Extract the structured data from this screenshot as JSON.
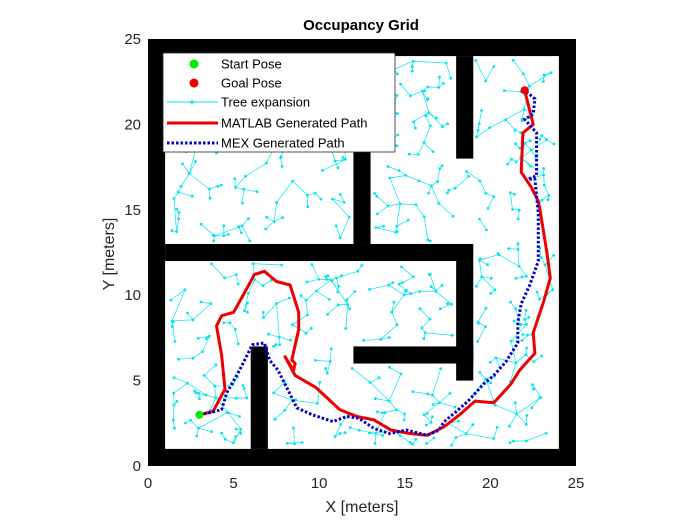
{
  "chart_data": {
    "type": "line",
    "title": "Occupancy Grid",
    "xlabel": "X [meters]",
    "ylabel": "Y [meters]",
    "xlim": [
      0,
      25
    ],
    "ylim": [
      0,
      25
    ],
    "xticks": [
      0,
      5,
      10,
      15,
      20,
      25
    ],
    "yticks": [
      0,
      5,
      10,
      15,
      20,
      25
    ],
    "grid": false,
    "legend_position": "top-left",
    "legend": [
      {
        "label": "Start Pose",
        "kind": "marker",
        "color": "#00ee00"
      },
      {
        "label": "Goal Pose",
        "kind": "marker",
        "color": "#ee0000"
      },
      {
        "label": "Tree expansion",
        "kind": "line-marker",
        "color": "#00e5ee"
      },
      {
        "label": "MATLAB Generated Path",
        "kind": "line",
        "color": "#ee0000"
      },
      {
        "label": "MEX Generated Path",
        "kind": "dotted",
        "color": "#0000cc"
      }
    ],
    "obstacles": [
      {
        "x": [
          0,
          25
        ],
        "y": [
          0,
          1
        ]
      },
      {
        "x": [
          0,
          25
        ],
        "y": [
          24,
          25
        ]
      },
      {
        "x": [
          0,
          1
        ],
        "y": [
          0,
          25
        ]
      },
      {
        "x": [
          24,
          25
        ],
        "y": [
          0,
          25
        ]
      },
      {
        "x": [
          1,
          19
        ],
        "y": [
          12,
          13
        ]
      },
      {
        "x": [
          12,
          13
        ],
        "y": [
          13,
          21
        ]
      },
      {
        "x": [
          18,
          19
        ],
        "y": [
          5,
          12
        ]
      },
      {
        "x": [
          12,
          19
        ],
        "y": [
          6,
          7
        ]
      },
      {
        "x": [
          6,
          7
        ],
        "y": [
          1,
          7
        ]
      },
      {
        "x": [
          18,
          19
        ],
        "y": [
          18,
          24
        ]
      }
    ],
    "start": {
      "x": 3,
      "y": 3
    },
    "goal": {
      "x": 22,
      "y": 22
    },
    "series": [
      {
        "name": "MATLAB Generated Path",
        "color": "#ee0000",
        "x": [
          3,
          3.8,
          4.5,
          4.3,
          4.0,
          4.3,
          5.0,
          6.0,
          6.2,
          6.8,
          7.5,
          8.3,
          8.8,
          8.8,
          8.4,
          8.6,
          8.5,
          8.0,
          8.6,
          9.8,
          11.2,
          12.2,
          13.2,
          14.2,
          15.3,
          16.3,
          17.3,
          18.2,
          19.1,
          20.2,
          21.2,
          21.7,
          22.6,
          22.5,
          23.1,
          23.5,
          23.3,
          22.9,
          22.8,
          22.4,
          21.8,
          21.9,
          22.5,
          22.0
        ],
        "y": [
          3,
          3.2,
          4.5,
          6.5,
          8.2,
          8.8,
          9.0,
          10.8,
          11.2,
          11.4,
          10.8,
          10.6,
          9.0,
          8.0,
          6.2,
          6.0,
          5.6,
          6.4,
          5.3,
          4.6,
          3.3,
          2.9,
          2.7,
          2.1,
          1.9,
          1.8,
          2.3,
          3.0,
          3.8,
          3.7,
          4.8,
          5.6,
          6.6,
          7.8,
          9.6,
          11.0,
          12.5,
          15.0,
          15.5,
          16.3,
          17.2,
          19.5,
          20.0,
          22.0
        ]
      },
      {
        "name": "MEX Generated Path",
        "color": "#0000cc",
        "x": [
          3,
          3.5,
          4.3,
          4.6,
          5.4,
          6.1,
          6.8,
          7.1,
          7.6,
          8.1,
          8.7,
          9.6,
          10.8,
          11.6,
          12.3,
          13.2,
          14.1,
          15.1,
          16.3,
          17.0,
          17.3,
          17.9,
          18.7,
          19.6,
          20.2,
          20.9,
          21.6,
          21.6,
          21.8,
          22.3,
          22.8,
          22.8,
          22.6,
          22.2,
          22.7,
          22.7,
          22.0,
          22.5,
          22.6,
          22.0
        ],
        "y": [
          3,
          3.1,
          3.3,
          4.3,
          5.7,
          7.1,
          7.2,
          6.2,
          5.6,
          4.6,
          3.4,
          3.0,
          2.6,
          2.9,
          2.8,
          2.2,
          1.9,
          2.1,
          1.8,
          2.1,
          2.6,
          3.1,
          3.8,
          4.8,
          5.3,
          6.1,
          7.2,
          8.4,
          9.5,
          10.6,
          12.0,
          14.8,
          16.8,
          16.8,
          17.0,
          19.5,
          20.3,
          20.6,
          21.5,
          22.0
        ]
      }
    ]
  }
}
